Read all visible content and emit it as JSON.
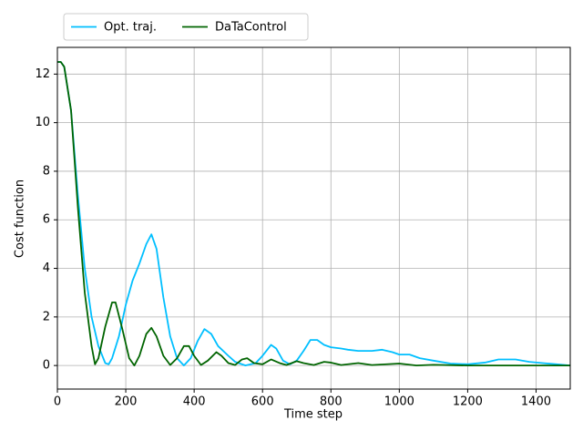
{
  "chart_data": {
    "type": "line",
    "xlabel": "Time step",
    "ylabel": "Cost function",
    "xlim": [
      0,
      1500
    ],
    "ylim": [
      -0.97,
      13.1
    ],
    "xticks": [
      0,
      200,
      400,
      600,
      800,
      1000,
      1200,
      1400
    ],
    "yticks": [
      0,
      2,
      4,
      6,
      8,
      10,
      12
    ],
    "grid": true,
    "legend": "top left outside",
    "series": [
      {
        "name": "Opt. traj.",
        "color": "#00bfff",
        "x": [
          0,
          10,
          20,
          40,
          60,
          80,
          100,
          120,
          140,
          150,
          160,
          180,
          200,
          220,
          240,
          260,
          275,
          290,
          310,
          330,
          350,
          370,
          390,
          410,
          430,
          450,
          470,
          500,
          520,
          550,
          580,
          600,
          625,
          640,
          660,
          680,
          700,
          720,
          740,
          760,
          780,
          800,
          830,
          850,
          880,
          920,
          950,
          980,
          1000,
          1030,
          1060,
          1100,
          1150,
          1200,
          1250,
          1290,
          1340,
          1380,
          1420,
          1460,
          1500
        ],
        "values": [
          12.5,
          12.5,
          12.3,
          10.5,
          7,
          4,
          2,
          0.8,
          0.1,
          0.05,
          0.3,
          1.2,
          2.5,
          3.5,
          4.2,
          5.0,
          5.4,
          4.8,
          2.8,
          1.2,
          0.3,
          0,
          0.3,
          1.0,
          1.5,
          1.3,
          0.8,
          0.4,
          0.15,
          0,
          0.1,
          0.4,
          0.85,
          0.7,
          0.2,
          0.05,
          0.2,
          0.6,
          1.05,
          1.05,
          0.85,
          0.75,
          0.7,
          0.65,
          0.6,
          0.6,
          0.65,
          0.55,
          0.45,
          0.45,
          0.3,
          0.2,
          0.08,
          0.05,
          0.12,
          0.25,
          0.25,
          0.15,
          0.1,
          0.05,
          0
        ]
      },
      {
        "name": "DaTaControl",
        "color": "#006400",
        "x": [
          0,
          10,
          20,
          40,
          60,
          80,
          100,
          110,
          120,
          140,
          160,
          170,
          190,
          210,
          225,
          240,
          260,
          275,
          290,
          310,
          330,
          350,
          370,
          385,
          400,
          420,
          440,
          465,
          480,
          500,
          520,
          540,
          555,
          575,
          600,
          625,
          650,
          670,
          700,
          720,
          750,
          780,
          800,
          830,
          880,
          920,
          1000,
          1050,
          1100,
          1200,
          1300,
          1400,
          1500
        ],
        "values": [
          12.5,
          12.5,
          12.3,
          10.5,
          6.5,
          3,
          0.8,
          0.05,
          0.3,
          1.6,
          2.6,
          2.6,
          1.5,
          0.3,
          0,
          0.4,
          1.3,
          1.55,
          1.2,
          0.4,
          0.02,
          0.3,
          0.8,
          0.8,
          0.4,
          0.02,
          0.2,
          0.55,
          0.4,
          0.1,
          0.02,
          0.25,
          0.3,
          0.1,
          0.05,
          0.25,
          0.1,
          0.02,
          0.18,
          0.1,
          0.02,
          0.15,
          0.12,
          0.02,
          0.1,
          0.02,
          0.08,
          0,
          0.03,
          0,
          0,
          0,
          0
        ]
      }
    ]
  }
}
